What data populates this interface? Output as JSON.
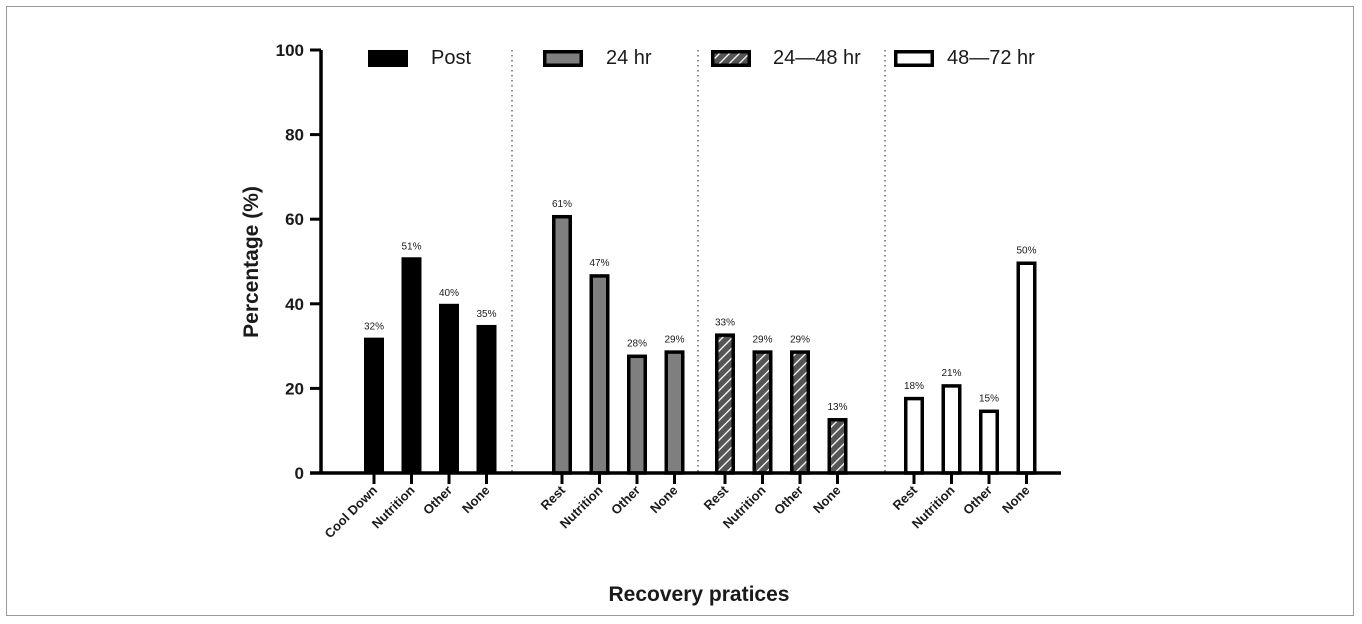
{
  "chart_data": {
    "type": "bar",
    "ylabel": "Percentage (%)",
    "xlabel": "Recovery pratices",
    "ylim": [
      0,
      100
    ],
    "yticks": [
      0,
      20,
      40,
      60,
      80,
      100
    ],
    "grid": false,
    "legend_position": "top, one entry above each group",
    "series": [
      {
        "name": "Post",
        "style": "solid",
        "color": "#000000",
        "categories": [
          "Cool Down",
          "Nutrition",
          "Other",
          "None"
        ],
        "values": [
          32,
          51,
          40,
          35
        ],
        "labels": [
          "32%",
          "51%",
          "40%",
          "35%"
        ]
      },
      {
        "name": "24 hr",
        "style": "gray",
        "color": "#7f7f7f",
        "categories": [
          "Rest",
          "Nutrition",
          "Other",
          "None"
        ],
        "values": [
          61,
          47,
          28,
          29
        ],
        "labels": [
          "61%",
          "47%",
          "28%",
          "29%"
        ]
      },
      {
        "name": "24—48 hr",
        "style": "hatched",
        "color": "#555555",
        "categories": [
          "Rest",
          "Nutrition",
          "Other",
          "None"
        ],
        "values": [
          33,
          29,
          29,
          13
        ],
        "labels": [
          "33%",
          "29%",
          "29%",
          "13%"
        ]
      },
      {
        "name": "48—72 hr",
        "style": "hollow",
        "color": "#ffffff",
        "categories": [
          "Rest",
          "Nutrition",
          "Other",
          "None"
        ],
        "values": [
          18,
          21,
          15,
          50
        ],
        "labels": [
          "18%",
          "21%",
          "15%",
          "50%"
        ]
      }
    ]
  }
}
